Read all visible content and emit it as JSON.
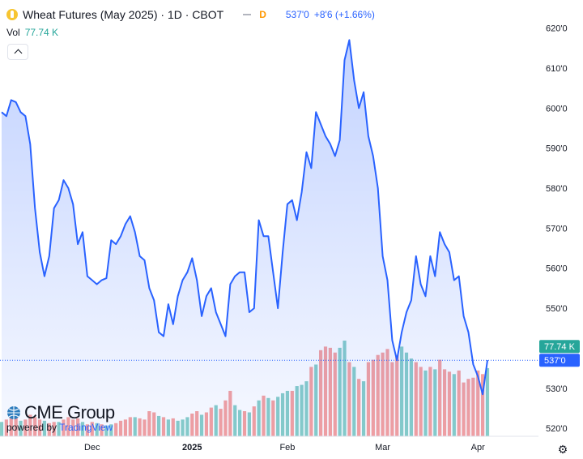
{
  "header": {
    "title": "Wheat Futures (May 2025) · 1D · CBOT",
    "delay_badge": "D",
    "last_price": "537'0",
    "change": "+8'6 (+1.66%)"
  },
  "volume_legend": {
    "label": "Vol",
    "value": "77.74 K"
  },
  "branding": {
    "logo_text": "CME Group",
    "powered_prefix": "powered by",
    "powered_brand": "TradingView"
  },
  "colors": {
    "line": "#2962ff",
    "vol_up": "#26a69a",
    "vol_down": "#ef5350",
    "vol_badge": "#26a69a",
    "price_badge": "#2962ff"
  },
  "icons": {
    "symbol": "wheat-symbol-icon",
    "collapse": "chevron-up-icon",
    "settings": "gear-icon"
  },
  "chart_data": [
    {
      "type": "area",
      "ylim": [
        518,
        626
      ],
      "yticks": [
        "620'0",
        "610'0",
        "600'0",
        "590'0",
        "580'0",
        "570'0",
        "560'0",
        "550'0",
        "540'0",
        "530'0",
        "520'0"
      ],
      "ytick_values": [
        620,
        610,
        600,
        590,
        580,
        570,
        560,
        550,
        540,
        530,
        520
      ],
      "xticks": [
        "Dec",
        "2025",
        "Feb",
        "Mar",
        "Apr"
      ],
      "xtick_index": [
        19,
        40,
        60,
        80,
        100
      ],
      "last_price_label": "537'0",
      "last_price_value": 537,
      "grid": false,
      "series": [
        {
          "values": [
            599,
            598,
            602,
            601.5,
            599,
            598,
            591,
            575,
            564,
            558,
            563,
            575,
            577,
            582,
            580,
            576,
            566,
            569,
            558,
            557,
            556,
            557,
            557.5,
            567,
            566,
            568,
            571,
            573,
            569,
            563,
            562,
            555,
            552,
            544,
            543,
            551,
            546,
            553,
            557,
            559,
            562.5,
            557,
            548,
            553,
            555,
            549,
            546,
            543,
            556,
            558,
            559,
            559,
            549,
            550,
            572,
            568,
            568,
            559,
            550,
            564,
            576,
            577,
            572,
            579,
            589,
            585,
            599,
            596,
            593,
            591,
            588,
            592,
            612,
            617,
            607,
            600,
            604,
            593,
            588,
            580,
            563,
            557,
            542,
            537,
            544,
            549,
            552,
            563,
            556,
            553,
            563,
            558,
            569,
            566,
            564,
            557,
            558,
            548,
            544,
            536,
            533,
            528.5,
            537
          ]
        }
      ]
    },
    {
      "type": "bar",
      "value_label": "77.74 K",
      "series": [
        {
          "values": [
            12,
            14,
            18,
            16,
            13,
            14,
            18,
            16,
            14,
            13,
            11,
            12,
            12,
            14,
            16,
            14,
            15,
            12,
            10,
            12,
            11,
            10,
            9,
            10,
            11,
            13,
            14,
            16,
            16,
            15,
            14,
            21,
            20,
            17,
            16,
            14,
            15,
            13,
            14,
            16,
            19,
            21,
            18,
            20,
            24,
            26,
            23,
            30,
            38,
            26,
            22,
            21,
            20,
            25,
            30,
            34,
            32,
            30,
            33,
            36,
            38,
            38,
            42,
            43,
            46,
            58,
            60,
            72,
            75,
            74,
            70,
            74,
            80,
            62,
            58,
            48,
            46,
            62,
            64,
            68,
            70,
            73,
            62,
            68,
            75,
            70,
            65,
            62,
            58,
            55,
            58,
            56,
            64,
            56,
            54,
            52,
            55,
            45,
            48,
            49,
            55,
            52,
            57
          ],
          "up": [
            1,
            0,
            0,
            0,
            1,
            0,
            0,
            0,
            0,
            1,
            0,
            0,
            1,
            0,
            0,
            0,
            0,
            1,
            0,
            0,
            1,
            0,
            1,
            1,
            0,
            0,
            0,
            0,
            1,
            0,
            0,
            0,
            0,
            1,
            0,
            1,
            0,
            1,
            1,
            1,
            0,
            0,
            1,
            0,
            0,
            1,
            0,
            0,
            0,
            1,
            1,
            0,
            1,
            0,
            1,
            0,
            1,
            0,
            1,
            1,
            1,
            0,
            1,
            1,
            1,
            0,
            1,
            0,
            0,
            0,
            0,
            1,
            1,
            0,
            1,
            0,
            1,
            0,
            0,
            0,
            0,
            0,
            0,
            0,
            1,
            1,
            1,
            0,
            0,
            1,
            0,
            1,
            0,
            0,
            0,
            1,
            0,
            0,
            0,
            0,
            0,
            0,
            1
          ]
        }
      ]
    }
  ]
}
